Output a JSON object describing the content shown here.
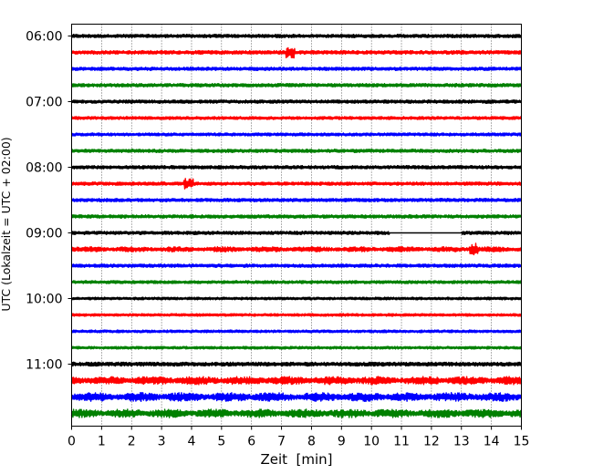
{
  "chart_data": {
    "type": "line",
    "title": "",
    "xlabel": "Zeit  [min]",
    "ylabel": "UTC (Lokalzeit = UTC + 02:00)",
    "xlim": [
      0,
      15
    ],
    "x_ticks": [
      0,
      1,
      2,
      3,
      4,
      5,
      6,
      7,
      8,
      9,
      10,
      11,
      12,
      13,
      14,
      15
    ],
    "y_tick_labels": [
      "06:00",
      "07:00",
      "08:00",
      "09:00",
      "10:00",
      "11:00"
    ],
    "grid": "vertical dotted",
    "trace_colors": [
      "#000000",
      "#ff0000",
      "#0000ff",
      "#008000"
    ],
    "traces": [
      {
        "start": "06:00",
        "amplitude": 1.0
      },
      {
        "start": "06:15",
        "amplitude": 1.1,
        "burst_at_min": 7.3
      },
      {
        "start": "06:30",
        "amplitude": 1.0
      },
      {
        "start": "06:45",
        "amplitude": 1.0
      },
      {
        "start": "07:00",
        "amplitude": 1.0
      },
      {
        "start": "07:15",
        "amplitude": 0.9
      },
      {
        "start": "07:30",
        "amplitude": 0.9
      },
      {
        "start": "07:45",
        "amplitude": 1.0
      },
      {
        "start": "08:00",
        "amplitude": 1.0
      },
      {
        "start": "08:15",
        "amplitude": 1.0,
        "burst_at_min": 3.9
      },
      {
        "start": "08:30",
        "amplitude": 1.0
      },
      {
        "start": "08:45",
        "amplitude": 1.0
      },
      {
        "start": "09:00",
        "amplitude": 1.0,
        "gap_min": [
          10.6,
          13.0
        ]
      },
      {
        "start": "09:15",
        "amplitude": 1.6,
        "burst_at_min": 13.4
      },
      {
        "start": "09:30",
        "amplitude": 1.0
      },
      {
        "start": "09:45",
        "amplitude": 0.9
      },
      {
        "start": "10:00",
        "amplitude": 0.8
      },
      {
        "start": "10:15",
        "amplitude": 0.8
      },
      {
        "start": "10:30",
        "amplitude": 0.8
      },
      {
        "start": "10:45",
        "amplitude": 0.8
      },
      {
        "start": "11:00",
        "amplitude": 1.2
      },
      {
        "start": "11:15",
        "amplitude": 2.5
      },
      {
        "start": "11:30",
        "amplitude": 2.7
      },
      {
        "start": "11:45",
        "amplitude": 2.6
      }
    ]
  }
}
